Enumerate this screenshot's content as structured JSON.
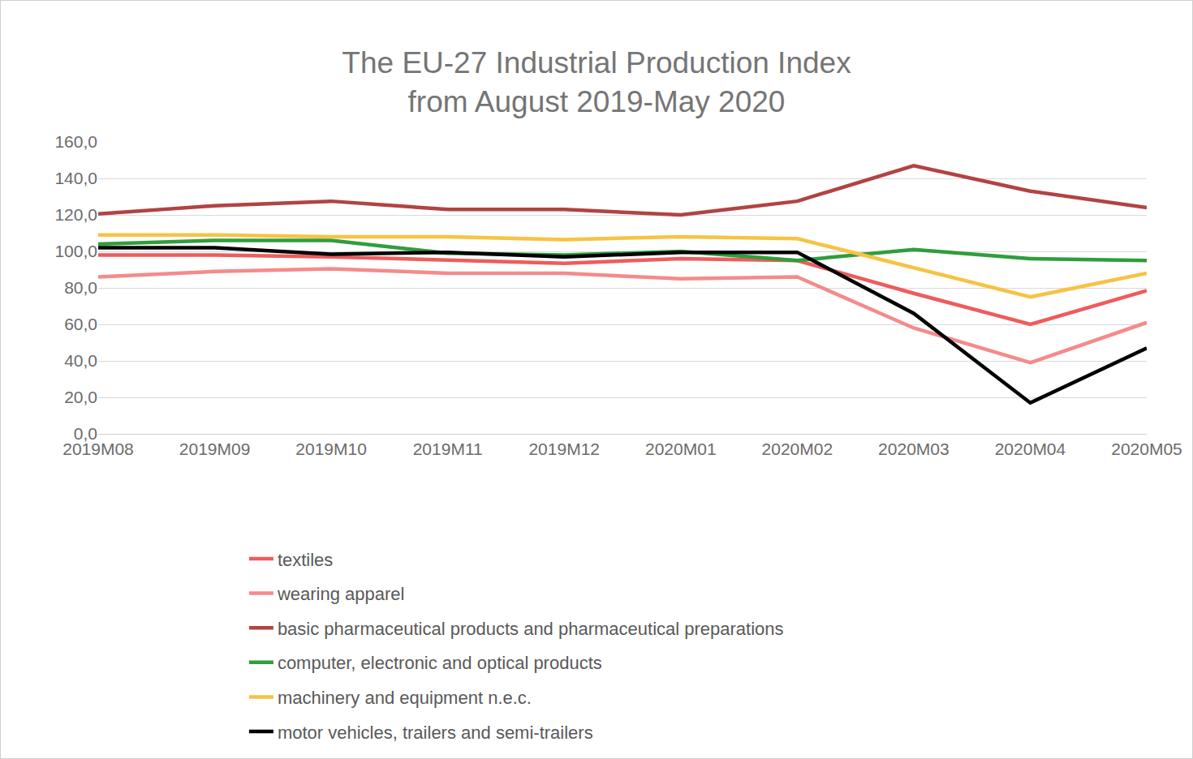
{
  "chart_data": {
    "type": "line",
    "title": "The EU-27 Industrial Production Index\nfrom August 2019-May 2020",
    "categories": [
      "2019M08",
      "2019M09",
      "2019M10",
      "2019M11",
      "2019M12",
      "2020M01",
      "2020M02",
      "2020M03",
      "2020M04",
      "2020M05"
    ],
    "series": [
      {
        "name": "textiles",
        "color": "#ee5c5c",
        "values": [
          98,
          98,
          97,
          95,
          93.5,
          96,
          95,
          77,
          60,
          78.5
        ]
      },
      {
        "name": "wearing apparel",
        "color": "#f48b8b",
        "values": [
          86,
          89,
          90.5,
          88,
          88,
          85,
          86,
          58,
          39,
          61
        ]
      },
      {
        "name": "basic pharmaceutical products and pharmaceutical preparations",
        "color": "#b24343",
        "values": [
          120.5,
          125,
          127.5,
          123,
          123,
          120,
          127.5,
          147,
          133,
          124
        ]
      },
      {
        "name": "computer, electronic and optical products",
        "color": "#2f9e3b",
        "values": [
          104,
          106,
          106,
          99,
          98,
          100,
          95,
          101,
          96,
          95
        ]
      },
      {
        "name": "machinery and equipment n.e.c.",
        "color": "#f6c343",
        "values": [
          109,
          109,
          108,
          108,
          106.5,
          108,
          107,
          91,
          75,
          88
        ]
      },
      {
        "name": "motor vehicles, trailers and semi-trailers",
        "color": "#000000",
        "values": [
          102,
          102,
          98.5,
          99.5,
          97,
          99.5,
          99.5,
          66,
          17,
          47
        ]
      }
    ],
    "ylim": [
      0,
      160
    ],
    "yticks": [
      {
        "value": 0,
        "label": "0,0"
      },
      {
        "value": 20,
        "label": "20,0"
      },
      {
        "value": 40,
        "label": "40,0"
      },
      {
        "value": 60,
        "label": "60,0"
      },
      {
        "value": 80,
        "label": "80,0"
      },
      {
        "value": 100,
        "label": "100,0"
      },
      {
        "value": 120,
        "label": "120,0"
      },
      {
        "value": 140,
        "label": "140,0"
      },
      {
        "value": 160,
        "label": "160,0"
      }
    ],
    "grid": true,
    "legend": "bottom"
  }
}
